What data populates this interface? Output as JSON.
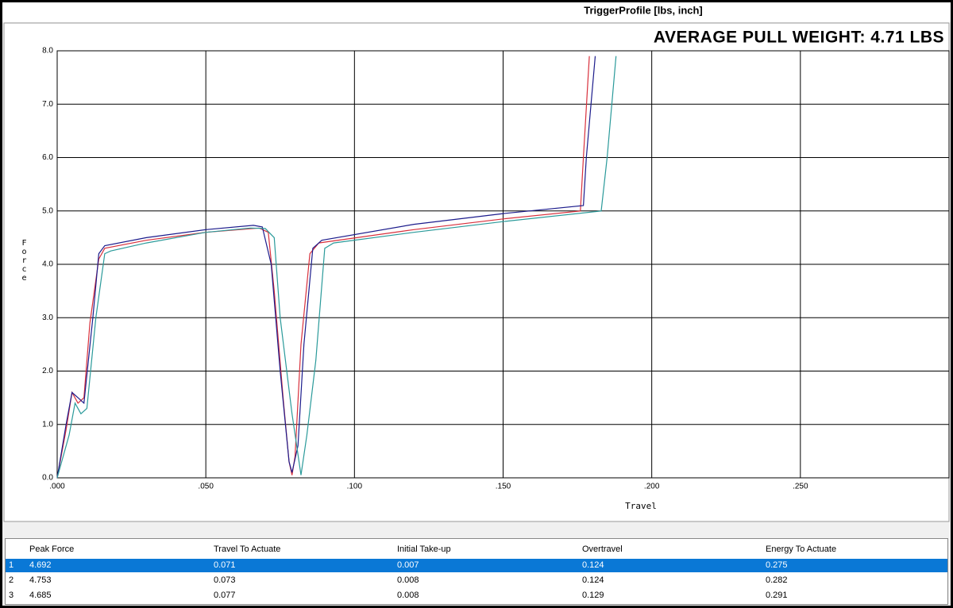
{
  "chart_data": {
    "type": "line",
    "title": "TriggerProfile [lbs, inch]",
    "annotation": "AVERAGE PULL WEIGHT: 4.71 LBS",
    "x_label": "Travel",
    "y_label": "Force",
    "xlim": [
      0,
      0.3
    ],
    "ylim": [
      0,
      8
    ],
    "xticks": [
      {
        "value": 0,
        "label": ".000"
      },
      {
        "value": 0.05,
        "label": ".050"
      },
      {
        "value": 0.1,
        "label": ".100"
      },
      {
        "value": 0.15,
        "label": ".150"
      },
      {
        "value": 0.2,
        "label": ".200"
      },
      {
        "value": 0.25,
        "label": ".250"
      }
    ],
    "yticks": [
      {
        "value": 0,
        "label": "0.0"
      },
      {
        "value": 1,
        "label": "1.0"
      },
      {
        "value": 2,
        "label": "2.0"
      },
      {
        "value": 3,
        "label": "3.0"
      },
      {
        "value": 4,
        "label": "4.0"
      },
      {
        "value": 5,
        "label": "5.0"
      },
      {
        "value": 6,
        "label": "6.0"
      },
      {
        "value": 7,
        "label": "7.0"
      },
      {
        "value": 8,
        "label": "8.0"
      }
    ],
    "grid": true,
    "series": [
      {
        "color": "#d8303c",
        "x": [
          0,
          0.003,
          0.005,
          0.007,
          0.009,
          0.011,
          0.014,
          0.016,
          0.03,
          0.05,
          0.068,
          0.071,
          0.073,
          0.076,
          0.078,
          0.079,
          0.08,
          0.082,
          0.085,
          0.088,
          0.12,
          0.15,
          0.176,
          0.177,
          0.179
        ],
        "values": [
          0,
          0.9,
          1.6,
          1.4,
          1.5,
          2.9,
          4.1,
          4.3,
          4.45,
          4.6,
          4.68,
          4.6,
          3.5,
          1.5,
          0.3,
          0.05,
          0.4,
          2.5,
          4.2,
          4.4,
          4.65,
          4.85,
          5.0,
          6.0,
          7.9
        ]
      },
      {
        "color": "#1c1c8c",
        "x": [
          0,
          0.003,
          0.005,
          0.007,
          0.009,
          0.012,
          0.014,
          0.016,
          0.03,
          0.05,
          0.066,
          0.069,
          0.072,
          0.075,
          0.078,
          0.079,
          0.081,
          0.083,
          0.086,
          0.089,
          0.12,
          0.15,
          0.177,
          0.178,
          0.181
        ],
        "values": [
          0,
          1.0,
          1.6,
          1.5,
          1.4,
          3.0,
          4.2,
          4.35,
          4.5,
          4.65,
          4.73,
          4.7,
          4.0,
          2.0,
          0.3,
          0.1,
          0.6,
          2.5,
          4.3,
          4.45,
          4.75,
          4.95,
          5.1,
          6.0,
          7.9
        ]
      },
      {
        "color": "#2a9a9a",
        "x": [
          0,
          0.004,
          0.006,
          0.008,
          0.01,
          0.013,
          0.016,
          0.018,
          0.03,
          0.05,
          0.065,
          0.07,
          0.073,
          0.075,
          0.079,
          0.082,
          0.084,
          0.087,
          0.09,
          0.093,
          0.12,
          0.15,
          0.183,
          0.185,
          0.188
        ],
        "values": [
          0,
          0.8,
          1.4,
          1.2,
          1.3,
          3.0,
          4.2,
          4.25,
          4.4,
          4.6,
          4.68,
          4.67,
          4.5,
          3.0,
          1.2,
          0.05,
          0.8,
          2.2,
          4.3,
          4.4,
          4.6,
          4.8,
          5.0,
          6.0,
          7.9
        ]
      }
    ]
  },
  "table": {
    "columns": [
      "Peak Force",
      "Travel To Actuate",
      "Initial Take-up",
      "Overtravel",
      "Energy To Actuate"
    ],
    "rows": [
      [
        "1",
        "4.692",
        "0.071",
        "0.007",
        "0.124",
        "0.275"
      ],
      [
        "2",
        "4.753",
        "0.073",
        "0.008",
        "0.124",
        "0.282"
      ],
      [
        "3",
        "4.685",
        "0.077",
        "0.008",
        "0.129",
        "0.291"
      ]
    ]
  }
}
